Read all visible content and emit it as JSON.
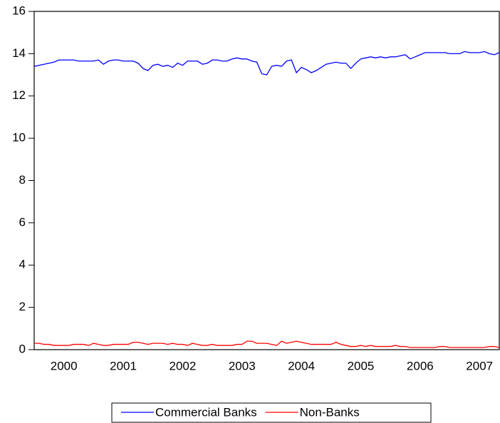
{
  "chart_data": {
    "type": "line",
    "categories": [
      null,
      null,
      null,
      null,
      null,
      null,
      "2000",
      null,
      null,
      null,
      null,
      null,
      null,
      null,
      null,
      null,
      null,
      null,
      "2001",
      null,
      null,
      null,
      null,
      null,
      null,
      null,
      null,
      null,
      null,
      null,
      "2002",
      null,
      null,
      null,
      null,
      null,
      null,
      null,
      null,
      null,
      null,
      null,
      "2003",
      null,
      null,
      null,
      null,
      null,
      null,
      null,
      null,
      null,
      null,
      null,
      "2004",
      null,
      null,
      null,
      null,
      null,
      null,
      null,
      null,
      null,
      null,
      null,
      "2005",
      null,
      null,
      null,
      null,
      null,
      null,
      null,
      null,
      null,
      null,
      null,
      "2006",
      null,
      null,
      null,
      null,
      null,
      null,
      null,
      null,
      null,
      null,
      null,
      "2007",
      null,
      null,
      null,
      null
    ],
    "series": [
      {
        "name": "Commercial Banks",
        "color": "#0000ff",
        "values": [
          13.4,
          13.45,
          13.5,
          13.55,
          13.6,
          13.7,
          13.7,
          13.7,
          13.7,
          13.65,
          13.65,
          13.65,
          13.65,
          13.7,
          13.5,
          13.65,
          13.7,
          13.7,
          13.65,
          13.65,
          13.65,
          13.55,
          13.3,
          13.2,
          13.45,
          13.5,
          13.4,
          13.45,
          13.35,
          13.55,
          13.45,
          13.65,
          13.65,
          13.65,
          13.5,
          13.55,
          13.7,
          13.7,
          13.65,
          13.65,
          13.75,
          13.8,
          13.75,
          13.75,
          13.65,
          13.6,
          13.05,
          13.0,
          13.4,
          13.45,
          13.4,
          13.65,
          13.7,
          13.1,
          13.35,
          13.25,
          13.1,
          13.2,
          13.35,
          13.5,
          13.55,
          13.6,
          13.55,
          13.55,
          13.3,
          13.55,
          13.75,
          13.8,
          13.85,
          13.8,
          13.85,
          13.8,
          13.85,
          13.85,
          13.9,
          13.95,
          13.75,
          13.85,
          13.95,
          14.05,
          14.05,
          14.05,
          14.05,
          14.05,
          14.0,
          14.0,
          14.0,
          14.1,
          14.05,
          14.05,
          14.05,
          14.1,
          14.0,
          13.95,
          14.05
        ]
      },
      {
        "name": "Non-Banks",
        "color": "#ff0000",
        "values": [
          0.3,
          0.3,
          0.25,
          0.25,
          0.2,
          0.2,
          0.2,
          0.2,
          0.25,
          0.25,
          0.25,
          0.2,
          0.3,
          0.25,
          0.2,
          0.2,
          0.25,
          0.25,
          0.25,
          0.25,
          0.35,
          0.35,
          0.3,
          0.25,
          0.3,
          0.3,
          0.3,
          0.25,
          0.3,
          0.25,
          0.25,
          0.2,
          0.3,
          0.25,
          0.2,
          0.2,
          0.25,
          0.2,
          0.2,
          0.2,
          0.2,
          0.25,
          0.25,
          0.4,
          0.4,
          0.3,
          0.3,
          0.3,
          0.25,
          0.2,
          0.4,
          0.3,
          0.35,
          0.4,
          0.35,
          0.3,
          0.25,
          0.25,
          0.25,
          0.25,
          0.25,
          0.35,
          0.25,
          0.2,
          0.15,
          0.15,
          0.2,
          0.15,
          0.2,
          0.15,
          0.15,
          0.15,
          0.15,
          0.2,
          0.15,
          0.15,
          0.1,
          0.1,
          0.1,
          0.1,
          0.1,
          0.1,
          0.15,
          0.15,
          0.1,
          0.1,
          0.1,
          0.1,
          0.1,
          0.1,
          0.1,
          0.1,
          0.15,
          0.15,
          0.1
        ]
      }
    ],
    "ylim": [
      0,
      16
    ],
    "yticks": [
      0,
      2,
      4,
      6,
      8,
      10,
      12,
      14,
      16
    ],
    "legend": "bottom"
  }
}
